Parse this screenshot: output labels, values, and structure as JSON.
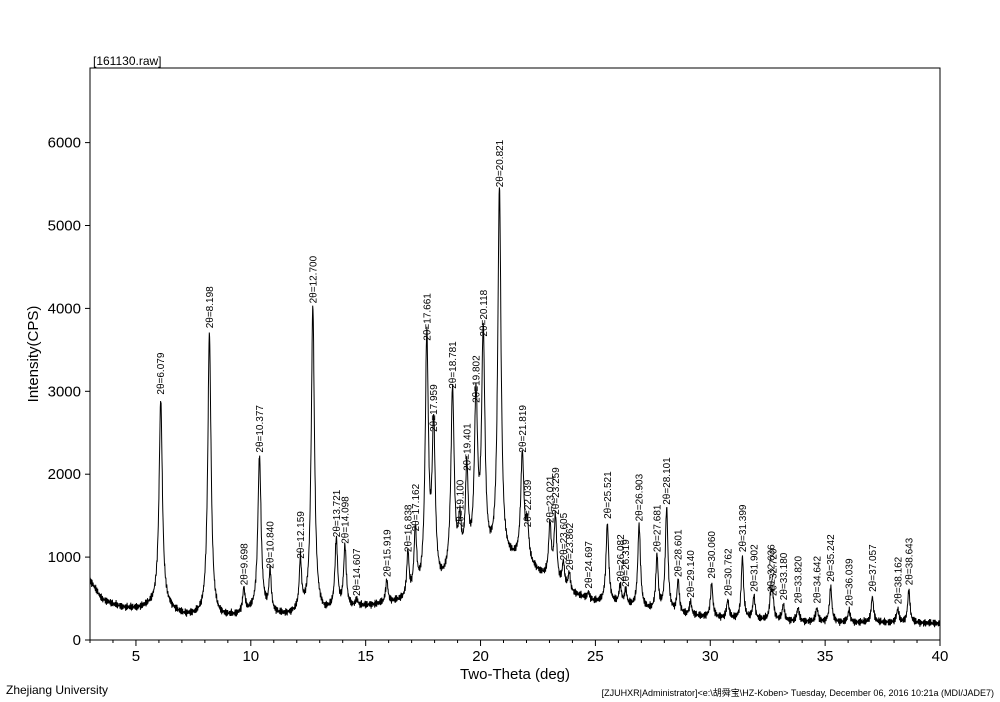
{
  "chart_data": {
    "type": "line",
    "file_label": "[161130.raw]",
    "xlabel": "Two-Theta (deg)",
    "ylabel": "Intensity(CPS)",
    "xlim": [
      3,
      40
    ],
    "ylim": [
      0,
      6900
    ],
    "xticks": [
      5,
      10,
      15,
      20,
      25,
      30,
      35,
      40
    ],
    "yticks": [
      0,
      1000,
      2000,
      3000,
      4000,
      5000,
      6000
    ],
    "baseline": [
      [
        3,
        720
      ],
      [
        3.5,
        500
      ],
      [
        4,
        430
      ],
      [
        4.5,
        390
      ],
      [
        5,
        380
      ],
      [
        5.5,
        400
      ],
      [
        6,
        430
      ],
      [
        7,
        300
      ],
      [
        7.6,
        280
      ],
      [
        8.6,
        260
      ],
      [
        9.3,
        280
      ],
      [
        10,
        320
      ],
      [
        11.5,
        290
      ],
      [
        12.2,
        320
      ],
      [
        13.2,
        300
      ],
      [
        13.4,
        330
      ],
      [
        15,
        400
      ],
      [
        16,
        430
      ],
      [
        17,
        470
      ],
      [
        18,
        540
      ],
      [
        18.5,
        660
      ],
      [
        19,
        800
      ],
      [
        19.5,
        880
      ],
      [
        20,
        860
      ],
      [
        21.3,
        920
      ],
      [
        22,
        900
      ],
      [
        22.5,
        800
      ],
      [
        23,
        700
      ],
      [
        23.5,
        620
      ],
      [
        24,
        550
      ],
      [
        25,
        450
      ],
      [
        26,
        420
      ],
      [
        27,
        360
      ],
      [
        28,
        320
      ],
      [
        29,
        290
      ],
      [
        30,
        270
      ],
      [
        31,
        250
      ],
      [
        32,
        240
      ],
      [
        34,
        220
      ],
      [
        36,
        210
      ],
      [
        38,
        210
      ],
      [
        40,
        200
      ]
    ],
    "peaks": [
      {
        "x": 6.079,
        "h": 2900,
        "label": "2θ=6.079"
      },
      {
        "x": 8.198,
        "h": 3700,
        "label": "2θ=8.198"
      },
      {
        "x": 9.698,
        "h": 600,
        "label": "2θ=9.698"
      },
      {
        "x": 10.377,
        "h": 2200,
        "label": "2θ=10.377"
      },
      {
        "x": 10.84,
        "h": 800,
        "label": "2θ=10.840"
      },
      {
        "x": 12.159,
        "h": 920,
        "label": "2θ=12.159"
      },
      {
        "x": 12.7,
        "h": 4000,
        "label": "2θ=12.700"
      },
      {
        "x": 13.721,
        "h": 1180,
        "label": "2θ=13.721"
      },
      {
        "x": 14.098,
        "h": 1100,
        "label": "2θ=14.098"
      },
      {
        "x": 14.607,
        "h": 470,
        "label": "2θ=14.607"
      },
      {
        "x": 15.919,
        "h": 700,
        "label": "2θ=15.919"
      },
      {
        "x": 16.838,
        "h": 1000,
        "label": "2θ=16.838"
      },
      {
        "x": 17.162,
        "h": 1250,
        "label": "2θ=17.162"
      },
      {
        "x": 17.661,
        "h": 3550,
        "label": "2θ=17.661"
      },
      {
        "x": 17.959,
        "h": 2450,
        "label": "2θ=17.959"
      },
      {
        "x": 18.781,
        "h": 2970,
        "label": "2θ=18.781"
      },
      {
        "x": 19.1,
        "h": 1300,
        "label": "2θ=19.100"
      },
      {
        "x": 19.401,
        "h": 1980,
        "label": "2θ=19.401"
      },
      {
        "x": 19.802,
        "h": 2800,
        "label": "2θ=19.802"
      },
      {
        "x": 20.118,
        "h": 3600,
        "label": "2θ=20.118"
      },
      {
        "x": 20.821,
        "h": 5400,
        "label": "2θ=20.821"
      },
      {
        "x": 21.819,
        "h": 2200,
        "label": "2θ=21.819"
      },
      {
        "x": 22.039,
        "h": 1300,
        "label": "2θ=22.039"
      },
      {
        "x": 23.021,
        "h": 1350,
        "label": "2θ=23.021"
      },
      {
        "x": 23.259,
        "h": 1450,
        "label": "2θ=23.259"
      },
      {
        "x": 23.605,
        "h": 900,
        "label": "2θ=23.605"
      },
      {
        "x": 23.862,
        "h": 780,
        "label": "2θ=23.862"
      },
      {
        "x": 24.697,
        "h": 560,
        "label": "2θ=24.697"
      },
      {
        "x": 25.521,
        "h": 1400,
        "label": "2θ=25.521"
      },
      {
        "x": 26.082,
        "h": 640,
        "label": "2θ=26.082"
      },
      {
        "x": 26.319,
        "h": 580,
        "label": "2θ=26.319"
      },
      {
        "x": 26.903,
        "h": 1370,
        "label": "2θ=26.903"
      },
      {
        "x": 27.681,
        "h": 1000,
        "label": "2θ=27.681"
      },
      {
        "x": 28.101,
        "h": 1570,
        "label": "2θ=28.101"
      },
      {
        "x": 28.601,
        "h": 700,
        "label": "2θ=28.601"
      },
      {
        "x": 29.14,
        "h": 450,
        "label": "2θ=29.140"
      },
      {
        "x": 30.06,
        "h": 680,
        "label": "2θ=30.060"
      },
      {
        "x": 30.762,
        "h": 470,
        "label": "2θ=30.762"
      },
      {
        "x": 31.399,
        "h": 1000,
        "label": "2θ=31.399"
      },
      {
        "x": 31.902,
        "h": 520,
        "label": "2θ=31.902"
      },
      {
        "x": 32.636,
        "h": 520,
        "label": "2θ=32.636"
      },
      {
        "x": 32.72,
        "h": 470,
        "label": "2θ=32.720"
      },
      {
        "x": 33.18,
        "h": 420,
        "label": "2θ=33.180"
      },
      {
        "x": 33.82,
        "h": 380,
        "label": "2θ=33.820"
      },
      {
        "x": 34.642,
        "h": 380,
        "label": "2θ=34.642"
      },
      {
        "x": 35.242,
        "h": 640,
        "label": "2θ=35.242"
      },
      {
        "x": 36.039,
        "h": 350,
        "label": "2θ=36.039"
      },
      {
        "x": 37.057,
        "h": 520,
        "label": "2θ=37.057"
      },
      {
        "x": 38.162,
        "h": 370,
        "label": "2θ=38.162"
      },
      {
        "x": 38.643,
        "h": 600,
        "label": "2θ=38.643"
      }
    ]
  },
  "footer": {
    "institution": "Zhejiang University",
    "info": "[ZJUHXR|Administrator]<e:\\胡舜宝\\HZ-Koben> Tuesday, December 06, 2016 10:21a (MDI/JADE7)"
  }
}
